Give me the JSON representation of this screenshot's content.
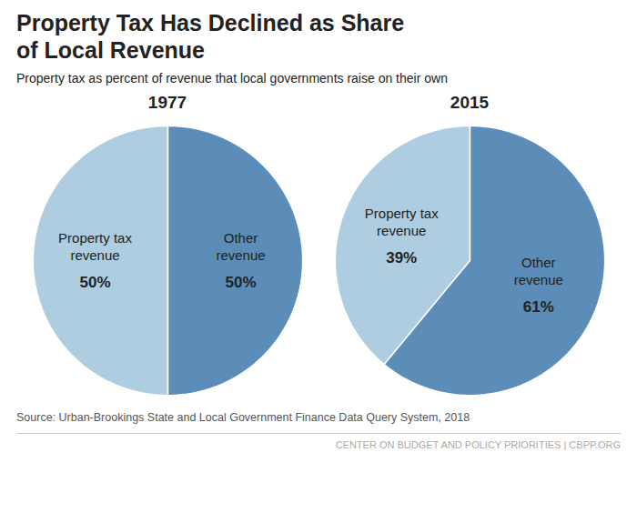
{
  "title": "Property Tax Has Declined as Share\nof Local Revenue",
  "subtitle": "Property tax as percent of revenue that local governments raise on their own",
  "annotations": [
    "Source: Urban-Brookings State and Local Government Finance Data Query System, 2018",
    "CENTER ON BUDGET AND POLICY PRIORITIES | CBPP.ORG"
  ],
  "chart_data": [
    {
      "type": "pie",
      "title": "1977",
      "categories": [
        "Property tax\nrevenue",
        "Other\nrevenue"
      ],
      "values": [
        50,
        50
      ],
      "value_labels": [
        "50%",
        "50%"
      ],
      "colors": [
        "#aecde1",
        "#5b8db8"
      ],
      "data_labels": true
    },
    {
      "type": "pie",
      "title": "2015",
      "categories": [
        "Property tax\nrevenue",
        "Other\nrevenue"
      ],
      "values": [
        39,
        61
      ],
      "value_labels": [
        "39%",
        "61%"
      ],
      "colors": [
        "#aecde1",
        "#5b8db8"
      ],
      "data_labels": true
    }
  ]
}
